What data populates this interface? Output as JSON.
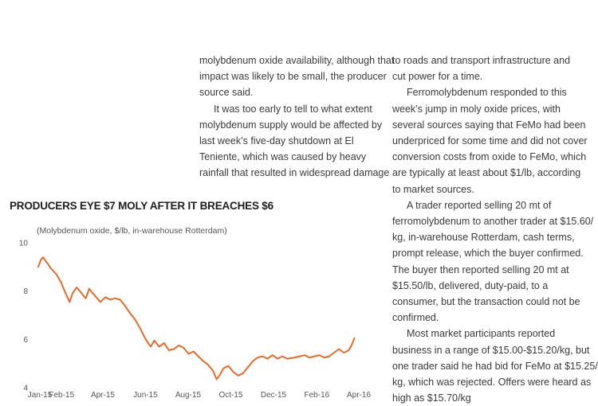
{
  "article": {
    "middle_lines": [
      {
        "text": "molybdenum oxide availability, although that",
        "indent": false
      },
      {
        "text": "impact was likely to be small, the producer",
        "indent": false
      },
      {
        "text": "source said.",
        "indent": false
      },
      {
        "text": "It was too early to tell to what extent",
        "indent": true
      },
      {
        "text": "molybdenum supply would be affected by",
        "indent": false
      },
      {
        "text": "last week’s five-day shutdown at El",
        "indent": false
      },
      {
        "text": "Teniente, which was caused by heavy",
        "indent": false
      },
      {
        "text": "rainfall that resulted in widespread damage",
        "indent": false
      }
    ],
    "right_lines": [
      {
        "text": "to roads and transport infrastructure and",
        "indent": false
      },
      {
        "text": "cut power for a time.",
        "indent": false
      },
      {
        "text": "Ferromolybdenum responded to this",
        "indent": true
      },
      {
        "text": "week’s jump in moly oxide prices, with",
        "indent": false
      },
      {
        "text": "several sources saying that FeMo had been",
        "indent": false
      },
      {
        "text": "underpriced for some time and did not cover",
        "indent": false
      },
      {
        "text": "conversion costs from oxide to FeMo, which",
        "indent": false
      },
      {
        "text": "are typically at least about $1/lb, according",
        "indent": false
      },
      {
        "text": "to market sources.",
        "indent": false
      },
      {
        "text": "A trader reported selling 20 mt of",
        "indent": true
      },
      {
        "text": "ferromolybdenum to another trader at $15.60/",
        "indent": false
      },
      {
        "text": "kg, in-warehouse Rotterdam, cash terms,",
        "indent": false
      },
      {
        "text": "prompt release, which the buyer confirmed.",
        "indent": false
      },
      {
        "text": "The buyer then reported selling 20 mt at",
        "indent": false
      },
      {
        "text": "$15.50/lb, delivered, duty-paid, to a",
        "indent": false
      },
      {
        "text": "consumer, but the transaction could not be",
        "indent": false
      },
      {
        "text": "confirmed.",
        "indent": false
      },
      {
        "text": "Most market participants reported",
        "indent": true
      },
      {
        "text": "business in a range of $15.00-$15.20/kg, but",
        "indent": false
      },
      {
        "text": "one trader said he had bid for FeMo at $15.25/",
        "indent": false
      },
      {
        "text": "kg, which was rejected. Offers were heard as",
        "indent": false
      },
      {
        "text": "high as $15.70/kg",
        "indent": false
      }
    ]
  },
  "chart_data": {
    "type": "line",
    "title": "PRODUCERS EYE $7 MOLY AFTER IT BREACHES $6",
    "subtitle": "(Molybdenum oxide, $/lb, in-warehouse Rotterdam)",
    "ylim": [
      4,
      10
    ],
    "yticks": [
      4,
      6,
      8,
      10
    ],
    "xtick_labels": [
      "Jan-15",
      "Feb-15",
      "Apr-15",
      "Jun-15",
      "Aug-15",
      "Oct-15",
      "Dec-15",
      "Feb-16",
      "Apr-16"
    ],
    "line_color": "#e26c2d",
    "grid": false,
    "series": [
      {
        "x": [
          "2015-01-02",
          "2015-01-06",
          "2015-01-09",
          "2015-01-14",
          "2015-01-20",
          "2015-01-28",
          "2015-02-04",
          "2015-02-11",
          "2015-02-16",
          "2015-02-20",
          "2015-02-26",
          "2015-03-04",
          "2015-03-11",
          "2015-03-16",
          "2015-03-20",
          "2015-03-26",
          "2015-04-01",
          "2015-04-08",
          "2015-04-15",
          "2015-04-22",
          "2015-04-29",
          "2015-05-06",
          "2015-05-13",
          "2015-05-20",
          "2015-05-27",
          "2015-06-03",
          "2015-06-08",
          "2015-06-12",
          "2015-06-17",
          "2015-06-24",
          "2015-07-01",
          "2015-07-08",
          "2015-07-15",
          "2015-07-22",
          "2015-07-29",
          "2015-08-05",
          "2015-08-12",
          "2015-08-19",
          "2015-08-26",
          "2015-09-02",
          "2015-09-09",
          "2015-09-14",
          "2015-09-18",
          "2015-09-24",
          "2015-10-01",
          "2015-10-08",
          "2015-10-15",
          "2015-10-22",
          "2015-10-29",
          "2015-11-05",
          "2015-11-12",
          "2015-11-19",
          "2015-11-26",
          "2015-12-03",
          "2015-12-10",
          "2015-12-17",
          "2015-12-24",
          "2016-01-04",
          "2016-01-11",
          "2016-01-18",
          "2016-01-25",
          "2016-02-01",
          "2016-02-08",
          "2016-02-15",
          "2016-02-22",
          "2016-02-29",
          "2016-03-07",
          "2016-03-14",
          "2016-03-21",
          "2016-03-25",
          "2016-03-29"
        ],
        "y": [
          9.0,
          9.3,
          9.4,
          9.2,
          8.95,
          8.7,
          8.35,
          7.85,
          7.55,
          7.9,
          8.15,
          7.95,
          7.7,
          8.1,
          7.95,
          7.75,
          7.55,
          7.75,
          7.65,
          7.7,
          7.65,
          7.4,
          7.1,
          6.85,
          6.5,
          6.1,
          5.85,
          5.7,
          5.95,
          5.7,
          5.85,
          5.55,
          5.6,
          5.75,
          5.65,
          5.4,
          5.5,
          5.3,
          5.1,
          4.95,
          4.7,
          4.35,
          4.5,
          4.8,
          4.9,
          4.65,
          4.5,
          4.6,
          4.85,
          5.1,
          5.25,
          5.3,
          5.2,
          5.35,
          5.2,
          5.3,
          5.2,
          5.25,
          5.3,
          5.35,
          5.25,
          5.3,
          5.35,
          5.25,
          5.3,
          5.45,
          5.6,
          5.45,
          5.55,
          5.75,
          6.05
        ]
      }
    ]
  }
}
